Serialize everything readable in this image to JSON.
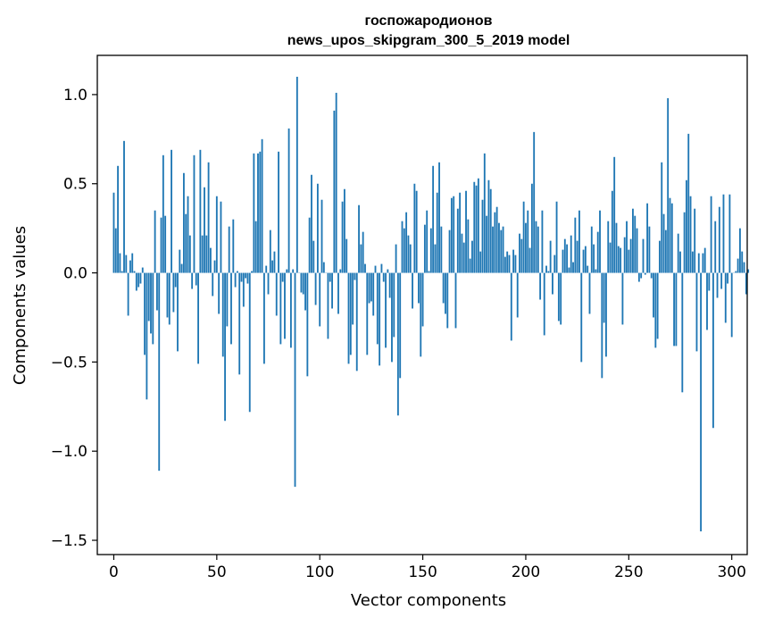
{
  "chart_data": {
    "type": "bar",
    "title": "госпожародионов",
    "subtitle": "news_upos_skipgram_300_5_2019 model",
    "xlabel": "Vector components",
    "ylabel": "Components values",
    "xlim": [
      -8,
      307.5
    ],
    "ylim": [
      -1.58,
      1.22
    ],
    "x_ticks": [
      0,
      50,
      100,
      150,
      200,
      250,
      300
    ],
    "y_ticks": [
      1.0,
      0.5,
      0.0,
      -0.5,
      -1.0,
      -1.5
    ],
    "x_tick_labels": [
      "0",
      "50",
      "100",
      "150",
      "200",
      "250",
      "300"
    ],
    "y_tick_labels": [
      "1.0",
      "0.5",
      "0.0",
      "−0.5",
      "−1.0",
      "−1.5"
    ],
    "bar_color": "#1f77b4",
    "grid": false,
    "values": [
      0.45,
      0.25,
      0.6,
      0.11,
      0.01,
      0.74,
      0.1,
      -0.24,
      0.07,
      0.11,
      0.01,
      -0.1,
      -0.08,
      -0.06,
      0.03,
      -0.46,
      -0.71,
      -0.27,
      -0.34,
      -0.4,
      0.35,
      -0.21,
      -1.11,
      0.31,
      0.66,
      0.32,
      -0.25,
      -0.29,
      0.69,
      -0.22,
      -0.08,
      -0.44,
      0.13,
      0.05,
      0.56,
      0.33,
      0.43,
      0.21,
      -0.09,
      0.66,
      -0.07,
      -0.51,
      0.69,
      0.21,
      0.48,
      0.21,
      0.62,
      0.14,
      -0.13,
      0.07,
      0.43,
      -0.23,
      0.4,
      -0.47,
      -0.83,
      -0.3,
      0.26,
      -0.4,
      0.3,
      -0.08,
      0.01,
      -0.57,
      -0.05,
      -0.19,
      -0.03,
      -0.06,
      -0.78,
      0.01,
      0.67,
      0.29,
      0.67,
      0.68,
      0.75,
      -0.51,
      0.04,
      -0.12,
      0.24,
      0.07,
      0.12,
      -0.24,
      0.68,
      -0.4,
      -0.05,
      -0.37,
      0.02,
      0.81,
      -0.42,
      0.02,
      -1.2,
      1.1,
      0.0,
      -0.11,
      -0.12,
      -0.21,
      -0.58,
      0.31,
      0.55,
      0.18,
      -0.18,
      0.5,
      -0.3,
      0.41,
      0.06,
      0.0,
      -0.37,
      -0.05,
      -0.2,
      0.91,
      1.01,
      -0.23,
      0.02,
      0.4,
      0.47,
      0.19,
      -0.51,
      -0.46,
      -0.29,
      -0.04,
      -0.55,
      0.38,
      0.16,
      0.23,
      0.05,
      -0.46,
      -0.17,
      -0.16,
      -0.24,
      0.04,
      -0.4,
      -0.52,
      0.05,
      -0.05,
      -0.42,
      0.02,
      -0.14,
      -0.5,
      -0.36,
      0.16,
      -0.8,
      -0.59,
      0.29,
      0.25,
      0.34,
      0.21,
      0.16,
      -0.2,
      0.5,
      0.46,
      -0.17,
      -0.47,
      -0.3,
      0.27,
      0.35,
      0.01,
      0.25,
      0.6,
      0.16,
      0.45,
      0.62,
      0.26,
      -0.17,
      -0.23,
      -0.31,
      0.24,
      0.42,
      0.43,
      -0.31,
      0.36,
      0.45,
      0.22,
      0.17,
      0.46,
      0.3,
      0.08,
      0.18,
      0.51,
      0.49,
      0.53,
      0.12,
      0.41,
      0.67,
      0.32,
      0.52,
      0.47,
      0.26,
      0.34,
      0.37,
      0.28,
      0.24,
      0.26,
      0.09,
      0.12,
      0.1,
      -0.38,
      0.13,
      0.1,
      -0.25,
      0.22,
      0.19,
      0.4,
      0.28,
      0.35,
      0.14,
      0.5,
      0.79,
      0.29,
      0.26,
      -0.15,
      0.35,
      -0.35,
      0.04,
      0.01,
      0.18,
      -0.12,
      0.1,
      0.4,
      -0.27,
      -0.29,
      0.13,
      0.19,
      0.16,
      0.03,
      0.21,
      0.06,
      0.31,
      0.18,
      0.35,
      -0.5,
      0.13,
      0.15,
      0.04,
      -0.23,
      0.26,
      0.16,
      0.02,
      0.23,
      0.35,
      -0.59,
      -0.28,
      -0.47,
      0.29,
      0.17,
      0.46,
      0.65,
      0.28,
      0.15,
      0.14,
      -0.29,
      0.2,
      0.29,
      0.13,
      0.19,
      0.36,
      0.32,
      0.25,
      -0.05,
      -0.03,
      0.19,
      -0.01,
      0.39,
      0.26,
      -0.03,
      -0.25,
      -0.42,
      -0.37,
      0.18,
      0.62,
      0.33,
      0.24,
      0.98,
      0.42,
      0.39,
      -0.41,
      -0.41,
      0.22,
      0.12,
      -0.67,
      0.34,
      0.52,
      0.78,
      0.43,
      0.12,
      0.36,
      -0.44,
      0.11,
      -1.45,
      0.11,
      0.14,
      -0.32,
      -0.1,
      0.43,
      -0.87,
      0.29,
      -0.14,
      0.37,
      -0.09,
      0.44,
      -0.28,
      -0.06,
      0.44,
      -0.36,
      0.0,
      0.01,
      0.08,
      0.25,
      0.12,
      0.06,
      -0.12,
      0.02
    ]
  }
}
